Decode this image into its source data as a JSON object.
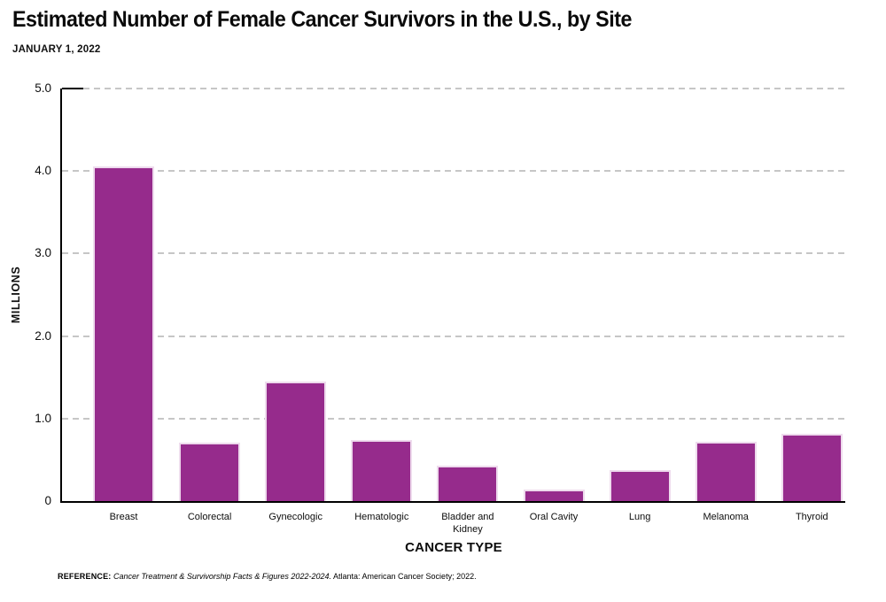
{
  "header": {
    "title": "Estimated Number of Female Cancer Survivors in the U.S., by Site",
    "subtitle": "JANUARY 1, 2022"
  },
  "chart_data": {
    "type": "bar",
    "title": "Estimated Number of Female Cancer Survivors in the U.S., by Site",
    "subtitle": "JANUARY 1, 2022",
    "categories": [
      "Breast",
      "Colorectal",
      "Gynecologic",
      "Hematologic",
      "Bladder and Kidney",
      "Oral Cavity",
      "Lung",
      "Melanoma",
      "Thyroid"
    ],
    "values": [
      4.06,
      0.71,
      1.45,
      0.74,
      0.43,
      0.14,
      0.38,
      0.72,
      0.82
    ],
    "xlabel": "CANCER TYPE",
    "ylabel": "MILLIONS",
    "ylim": [
      0,
      5
    ],
    "yticks": [
      0,
      1,
      2,
      3,
      4,
      5
    ],
    "ytick_labels": [
      "0",
      "1.0",
      "2.0",
      "3.0",
      "4.0",
      "5.0"
    ],
    "grid": "horizontal dashed, behind bars",
    "legend": "none",
    "bar_color": "#962b8c",
    "bar_edge_color": "#eedbed",
    "gridline_color": "#c6c6c6",
    "axis_color": "#000000"
  },
  "footer": {
    "reference_label": "REFERENCE:",
    "reference_italic": "Cancer Treatment & Survivorship Facts & Figures 2022-2024.",
    "reference_rest": "Atlanta: American Cancer Society; 2022."
  }
}
